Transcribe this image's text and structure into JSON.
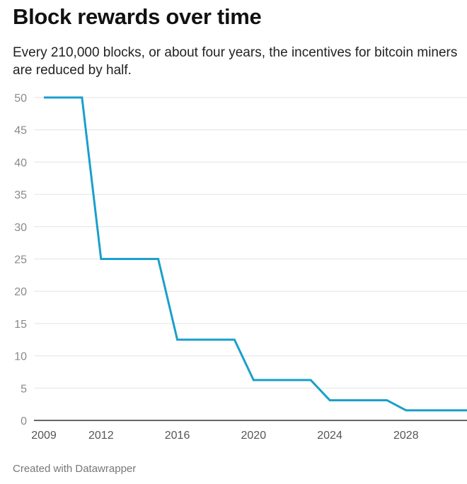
{
  "header": {
    "title": "Block rewards over time",
    "subtitle": "Every 210,000 blocks, or about four years, the incentives for bitcoin miners are reduced by half."
  },
  "footer": {
    "credit": "Created with Datawrapper"
  },
  "colors": {
    "line": "#1a9fcb",
    "grid": "#e3e3e3",
    "axis": "#333333",
    "tick_text": "#8a8a8a"
  },
  "chart_data": {
    "type": "line",
    "title": "Block rewards over time",
    "xlabel": "",
    "ylabel": "",
    "xlim": [
      2009,
      2031.2
    ],
    "ylim": [
      0,
      50
    ],
    "xticks": [
      2009,
      2012,
      2016,
      2020,
      2024,
      2028
    ],
    "yticks": [
      0,
      5,
      10,
      15,
      20,
      25,
      30,
      35,
      40,
      45,
      50
    ],
    "grid": true,
    "legend": "none",
    "series": [
      {
        "name": "",
        "points": [
          [
            2009.0,
            50
          ],
          [
            2011.0,
            50
          ],
          [
            2012.0,
            25
          ],
          [
            2015.0,
            25
          ],
          [
            2016.0,
            12.5
          ],
          [
            2019.0,
            12.5
          ],
          [
            2020.0,
            6.25
          ],
          [
            2023.0,
            6.25
          ],
          [
            2024.0,
            3.125
          ],
          [
            2027.0,
            3.125
          ],
          [
            2028.0,
            1.5625
          ],
          [
            2031.2,
            1.5625
          ]
        ]
      }
    ]
  }
}
